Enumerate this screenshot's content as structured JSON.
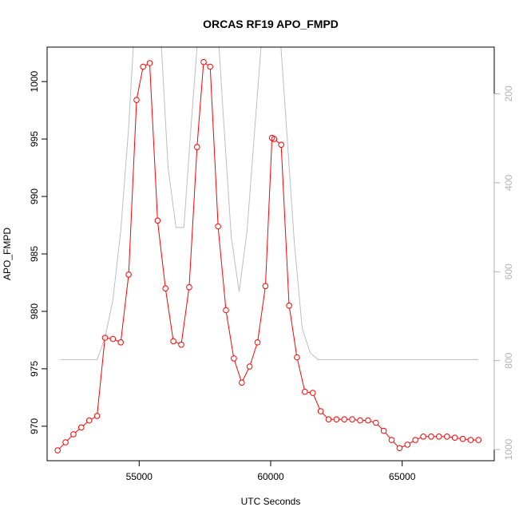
{
  "chart_data": {
    "type": "line",
    "title": "ORCAS RF19 APO_FMPD",
    "xlabel": "UTC Seconds",
    "ylabel": "APO_FMPD",
    "xlim": [
      51500,
      68500
    ],
    "ylim": [
      967,
      1003
    ],
    "x_ticks": [
      55000,
      60000,
      65000
    ],
    "y_ticks": [
      970,
      975,
      980,
      985,
      990,
      995,
      1000
    ],
    "y2_lim": [
      1025,
      95
    ],
    "y2_ticks": [
      200,
      400,
      600,
      800,
      1000
    ],
    "colors": {
      "primary": "#ff0000",
      "secondary": "#bebebe"
    },
    "series": [
      {
        "role": "primary",
        "x": [
          51900,
          52200,
          52500,
          52800,
          53100,
          53400,
          53700,
          54000,
          54300,
          54600,
          54900,
          55150,
          55400,
          55700,
          56000,
          56300,
          56600,
          56900,
          57200,
          57450,
          57700,
          58000,
          58300,
          58600,
          58900,
          59200,
          59500,
          59800,
          60050,
          60130,
          60400,
          60700,
          61000,
          61300,
          61600,
          61900,
          62200,
          62500,
          62800,
          63100,
          63400,
          63700,
          64000,
          64300,
          64600,
          64900,
          65200,
          65500,
          65800,
          66100,
          66400,
          66700,
          67000,
          67300,
          67600,
          67900
        ],
        "y": [
          967.9,
          968.6,
          969.3,
          969.9,
          970.5,
          970.9,
          977.7,
          977.6,
          977.3,
          983.2,
          998.4,
          1001.3,
          1001.6,
          987.9,
          982.0,
          977.4,
          977.1,
          982.1,
          994.3,
          1001.7,
          1001.3,
          987.4,
          980.1,
          975.9,
          973.8,
          975.2,
          977.3,
          982.2,
          995.1,
          995.0,
          994.5,
          980.5,
          976.0,
          973.0,
          972.9,
          971.3,
          970.6,
          970.6,
          970.6,
          970.6,
          970.5,
          970.5,
          970.3,
          969.6,
          968.8,
          968.1,
          968.4,
          968.8,
          969.1,
          969.1,
          969.1,
          969.1,
          969.0,
          968.9,
          968.8,
          968.8
        ]
      },
      {
        "role": "secondary",
        "x": [
          52000,
          53400,
          53700,
          54000,
          54300,
          54600,
          54900,
          55200,
          55500,
          55800,
          56100,
          56400,
          56700,
          57000,
          57300,
          57600,
          57900,
          58200,
          58500,
          58800,
          59100,
          59400,
          59700,
          60000,
          60300,
          60600,
          60900,
          61200,
          61500,
          61800,
          62100,
          62400,
          63000,
          64000,
          65000,
          66000,
          67000,
          67900
        ],
        "y": [
          975.8,
          975.8,
          977.7,
          981.0,
          987.0,
          996.0,
          1008.0,
          1015.0,
          1012.0,
          1005.0,
          992.5,
          987.3,
          987.3,
          997.0,
          1006.0,
          1010.0,
          1008.0,
          997.0,
          986.5,
          981.7,
          987.0,
          996.0,
          1005.0,
          1010.0,
          1006.0,
          996.0,
          986.0,
          978.5,
          976.4,
          975.8,
          975.8,
          975.8,
          975.8,
          975.8,
          975.8,
          975.8,
          975.8,
          975.8
        ]
      }
    ]
  }
}
